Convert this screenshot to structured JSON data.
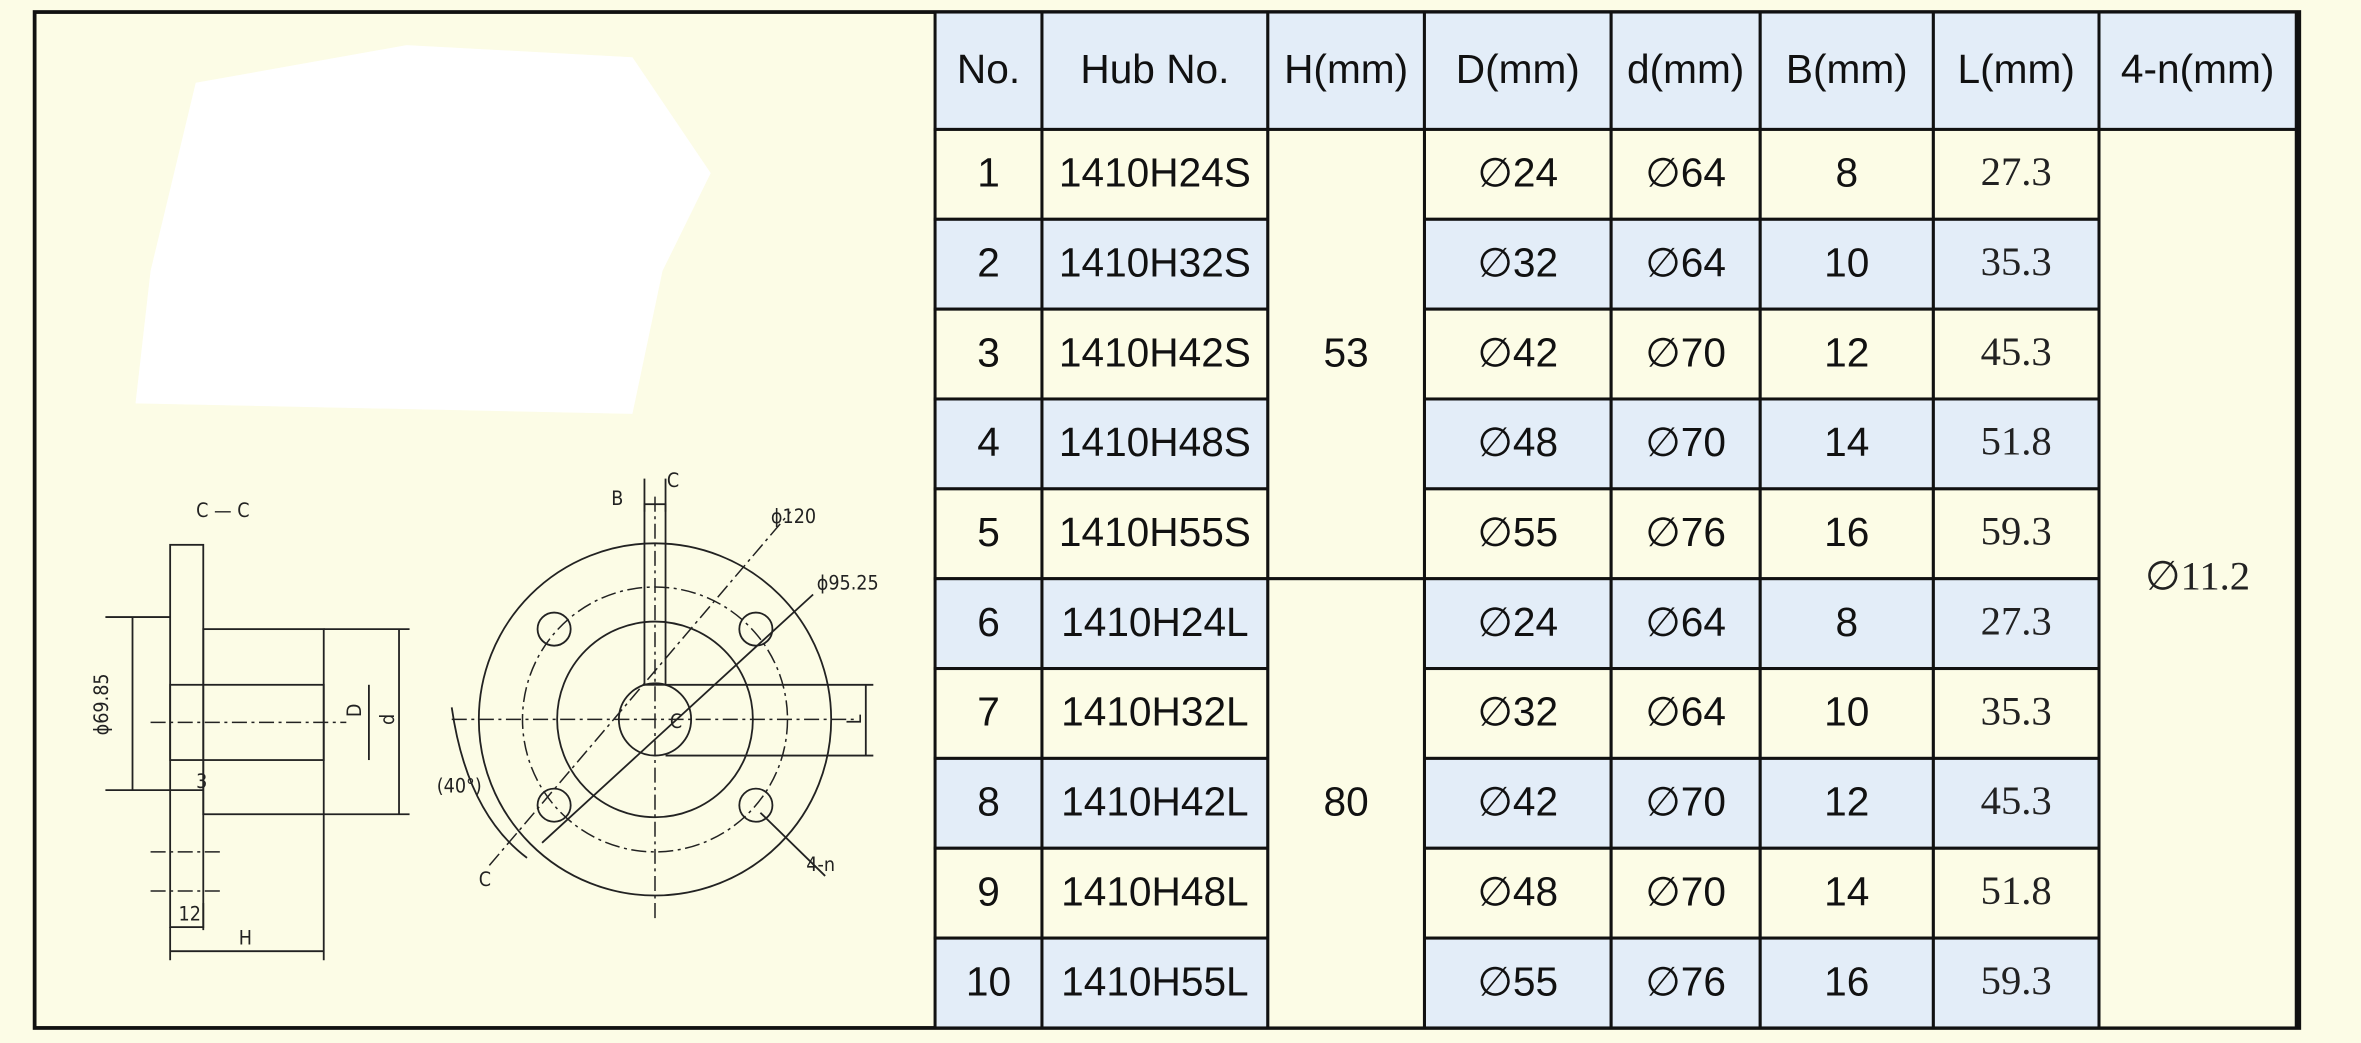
{
  "table": {
    "headers": [
      "No.",
      "Hub No.",
      "H(mm)",
      "D(mm)",
      "d(mm)",
      "B(mm)",
      "L(mm)",
      "4-n(mm)"
    ],
    "rows": [
      {
        "no": 1,
        "hub": "1410H24S",
        "D": "∅24",
        "d": "∅64",
        "B": 8,
        "L": "27.3"
      },
      {
        "no": 2,
        "hub": "1410H32S",
        "D": "∅32",
        "d": "∅64",
        "B": 10,
        "L": "35.3"
      },
      {
        "no": 3,
        "hub": "1410H42S",
        "D": "∅42",
        "d": "∅70",
        "B": 12,
        "L": "45.3"
      },
      {
        "no": 4,
        "hub": "1410H48S",
        "D": "∅48",
        "d": "∅70",
        "B": 14,
        "L": "51.8"
      },
      {
        "no": 5,
        "hub": "1410H55S",
        "D": "∅55",
        "d": "∅76",
        "B": 16,
        "L": "59.3"
      },
      {
        "no": 6,
        "hub": "1410H24L",
        "D": "∅24",
        "d": "∅64",
        "B": 8,
        "L": "27.3"
      },
      {
        "no": 7,
        "hub": "1410H32L",
        "D": "∅32",
        "d": "∅64",
        "B": 10,
        "L": "35.3"
      },
      {
        "no": 8,
        "hub": "1410H42L",
        "D": "∅42",
        "d": "∅70",
        "B": 12,
        "L": "45.3"
      },
      {
        "no": 9,
        "hub": "1410H48L",
        "D": "∅48",
        "d": "∅70",
        "B": 14,
        "L": "51.8"
      },
      {
        "no": 10,
        "hub": "1410H55L",
        "D": "∅55",
        "d": "∅76",
        "B": 16,
        "L": "59.3"
      }
    ],
    "h_groups": [
      53,
      80
    ],
    "holes": "∅11.2"
  },
  "drawing": {
    "labels": [
      "C — C",
      "ϕ69.85",
      "D",
      "d",
      "3",
      "12",
      "H",
      "B",
      "C",
      "ϕ120",
      "ϕ95.25",
      "L",
      "(40°)",
      "C",
      "4-n",
      "C"
    ]
  }
}
